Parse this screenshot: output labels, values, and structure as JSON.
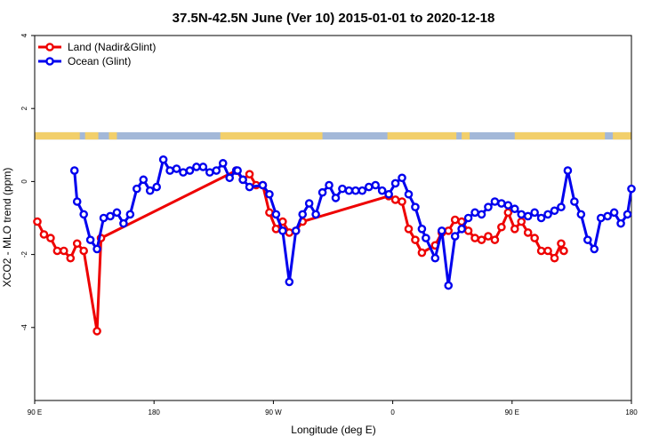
{
  "chart_data": {
    "type": "line",
    "title": "37.5N-42.5N June (Ver 10)   2015-01-01 to 2020-12-18",
    "xlabel": "Longitude (deg E)",
    "ylabel": "XCO2 - MLO trend (ppm)",
    "xlim": [
      90,
      540
    ],
    "ylim": [
      -6,
      4
    ],
    "x_ticks": [
      {
        "value": 90,
        "label": "90 E"
      },
      {
        "value": 180,
        "label": "180"
      },
      {
        "value": 270,
        "label": "90 W"
      },
      {
        "value": 360,
        "label": "0"
      },
      {
        "value": 450,
        "label": "90 E"
      },
      {
        "value": 540,
        "label": "180"
      }
    ],
    "y_ticks": [
      {
        "value": 4,
        "label": "4"
      },
      {
        "value": 2,
        "label": "2"
      },
      {
        "value": 0,
        "label": "0"
      },
      {
        "value": -2,
        "label": "-2"
      },
      {
        "value": -4,
        "label": "-4"
      }
    ],
    "grid": false,
    "legend": "top-left",
    "land_mask_band": {
      "y_range": [
        1.15,
        1.35
      ]
    },
    "series": [
      {
        "name": "Land (Nadir&Glint)",
        "color": "#ee0000",
        "x": [
          92,
          97,
          102,
          107,
          112,
          117,
          122,
          127,
          137,
          140,
          242,
          247,
          252,
          257,
          262,
          267,
          272,
          277,
          282,
          287,
          292,
          357,
          362,
          367,
          372,
          377,
          382,
          392,
          397,
          402,
          407,
          412,
          417,
          422,
          427,
          432,
          437,
          442,
          447,
          452,
          457,
          462,
          467,
          472,
          477,
          482,
          487,
          489
        ],
        "y": [
          -1.1,
          -1.45,
          -1.55,
          -1.9,
          -1.9,
          -2.1,
          -1.7,
          -1.9,
          -4.1,
          -1.55,
          0.3,
          0.05,
          0.2,
          -0.1,
          -0.1,
          -0.85,
          -1.3,
          -1.1,
          -1.4,
          -1.35,
          -1.1,
          -0.4,
          -0.5,
          -0.55,
          -1.3,
          -1.6,
          -1.95,
          -1.75,
          -1.4,
          -1.35,
          -1.05,
          -1.1,
          -1.35,
          -1.55,
          -1.6,
          -1.5,
          -1.6,
          -1.25,
          -0.85,
          -1.3,
          -1.1,
          -1.4,
          -1.55,
          -1.9,
          -1.9,
          -2.1,
          -1.7,
          -1.9
        ]
      },
      {
        "name": "Ocean (Glint)",
        "color": "#0000ee",
        "x": [
          120,
          122,
          127,
          132,
          137,
          142,
          147,
          152,
          157,
          162,
          167,
          172,
          177,
          182,
          187,
          192,
          197,
          202,
          207,
          212,
          217,
          222,
          227,
          232,
          237,
          242,
          243,
          247,
          252,
          262,
          267,
          272,
          277,
          282,
          287,
          292,
          297,
          302,
          307,
          312,
          317,
          322,
          327,
          332,
          337,
          342,
          347,
          352,
          357,
          362,
          367,
          372,
          377,
          382,
          385,
          392,
          397,
          402,
          407,
          412,
          417,
          422,
          427,
          432,
          437,
          442,
          447,
          452,
          457,
          462,
          467,
          472,
          477,
          482,
          487,
          492,
          497,
          502,
          507,
          512,
          517,
          522,
          527,
          532,
          537,
          540
        ],
        "y": [
          0.3,
          -0.55,
          -0.9,
          -1.6,
          -1.85,
          -1.0,
          -0.95,
          -0.85,
          -1.15,
          -0.9,
          -0.2,
          0.05,
          -0.25,
          -0.15,
          0.6,
          0.3,
          0.35,
          0.25,
          0.3,
          0.4,
          0.4,
          0.25,
          0.3,
          0.5,
          0.1,
          0.3,
          0.3,
          0.05,
          -0.15,
          -0.1,
          -0.35,
          -0.9,
          -1.35,
          -2.75,
          -1.35,
          -0.9,
          -0.6,
          -0.9,
          -0.3,
          -0.1,
          -0.45,
          -0.2,
          -0.25,
          -0.25,
          -0.25,
          -0.15,
          -0.1,
          -0.25,
          -0.35,
          -0.05,
          0.1,
          -0.35,
          -0.7,
          -1.3,
          -1.55,
          -2.1,
          -1.35,
          -2.85,
          -1.5,
          -1.3,
          -1.0,
          -0.85,
          -0.9,
          -0.7,
          -0.55,
          -0.6,
          -0.65,
          -0.75,
          -0.9,
          -0.95,
          -0.85,
          -1.0,
          -0.9,
          -0.8,
          -0.7,
          0.3,
          -0.55,
          -0.9,
          -1.6,
          -1.85,
          -1.0,
          -0.95,
          -0.85,
          -1.15,
          -0.9,
          -0.2
        ]
      }
    ]
  }
}
